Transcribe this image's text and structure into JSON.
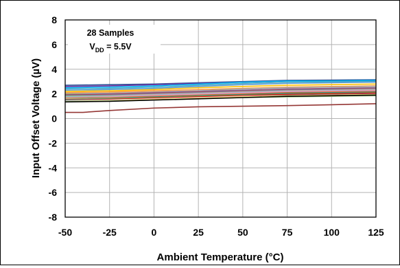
{
  "chart_data": {
    "type": "line",
    "title": "",
    "xlabel": "Ambient Temperature (°C)",
    "ylabel": "Input Offset Voltage (µV)",
    "xlim": [
      -50,
      125
    ],
    "ylim": [
      -8,
      8
    ],
    "x_ticks": [
      "-50",
      "-25",
      "0",
      "25",
      "50",
      "75",
      "100",
      "125"
    ],
    "y_ticks": [
      "8",
      "6",
      "4",
      "2",
      "0",
      "-2",
      "-4",
      "-6",
      "-8"
    ],
    "grid": true,
    "annotation": {
      "line1": "28 Samples",
      "line2_main": "V",
      "line2_sub": "DD",
      "line2_rest": " = 5.5V"
    },
    "x": [
      -50,
      -40,
      -25,
      0,
      25,
      50,
      75,
      100,
      125
    ],
    "series": [
      {
        "color": "#2F5597",
        "values": [
          2.7,
          2.72,
          2.75,
          2.8,
          2.9,
          3.0,
          3.1,
          3.12,
          3.15
        ]
      },
      {
        "color": "#7030A0",
        "values": [
          2.6,
          2.62,
          2.65,
          2.75,
          2.85,
          2.95,
          3.05,
          3.05,
          3.05
        ]
      },
      {
        "color": "#00B0F0",
        "values": [
          2.5,
          2.52,
          2.55,
          2.65,
          2.8,
          2.95,
          3.05,
          3.05,
          3.1
        ]
      },
      {
        "color": "#4BACC6",
        "values": [
          2.4,
          2.42,
          2.45,
          2.55,
          2.7,
          2.85,
          2.95,
          2.98,
          3.0
        ]
      },
      {
        "color": "#5B9BD5",
        "values": [
          2.3,
          2.32,
          2.35,
          2.45,
          2.6,
          2.75,
          2.85,
          2.9,
          2.95
        ]
      },
      {
        "color": "#FFC000",
        "values": [
          2.2,
          2.22,
          2.25,
          2.35,
          2.5,
          2.6,
          2.7,
          2.75,
          2.8
        ]
      },
      {
        "color": "#F79646",
        "values": [
          2.1,
          2.12,
          2.15,
          2.25,
          2.35,
          2.45,
          2.55,
          2.6,
          2.65
        ]
      },
      {
        "color": "#A5A5A5",
        "values": [
          2.0,
          2.02,
          2.05,
          2.15,
          2.25,
          2.4,
          2.5,
          2.55,
          2.6
        ]
      },
      {
        "color": "#9BBB59",
        "values": [
          2.0,
          2.0,
          2.0,
          2.05,
          2.1,
          2.15,
          2.2,
          2.25,
          2.3
        ]
      },
      {
        "color": "#8064A2",
        "values": [
          1.95,
          1.97,
          2.0,
          2.1,
          2.2,
          2.3,
          2.4,
          2.45,
          2.5
        ]
      },
      {
        "color": "#C0504D",
        "values": [
          1.9,
          1.92,
          1.95,
          2.05,
          2.15,
          2.25,
          2.35,
          2.4,
          2.45
        ]
      },
      {
        "color": "#4F81BD",
        "values": [
          1.85,
          1.87,
          1.9,
          2.0,
          2.1,
          2.2,
          2.3,
          2.35,
          2.4
        ]
      },
      {
        "color": "#F4B183",
        "values": [
          1.8,
          1.82,
          1.85,
          1.95,
          2.05,
          2.15,
          2.25,
          2.3,
          2.35
        ]
      },
      {
        "color": "#92D050",
        "values": [
          1.8,
          1.8,
          1.82,
          1.9,
          2.0,
          2.1,
          2.15,
          2.2,
          2.25
        ]
      },
      {
        "color": "#8EA9DB",
        "values": [
          1.75,
          1.77,
          1.8,
          1.9,
          2.0,
          2.1,
          2.2,
          2.25,
          2.3
        ]
      },
      {
        "color": "#FF99CC",
        "values": [
          1.7,
          1.72,
          1.75,
          1.85,
          1.95,
          2.05,
          2.15,
          2.2,
          2.25
        ]
      },
      {
        "color": "#B4C7E7",
        "values": [
          1.7,
          1.7,
          1.72,
          1.8,
          1.9,
          2.0,
          2.05,
          2.1,
          2.15
        ]
      },
      {
        "color": "#E46C0A",
        "values": [
          1.65,
          1.67,
          1.7,
          1.8,
          1.9,
          2.0,
          2.1,
          2.15,
          2.2
        ]
      },
      {
        "color": "#31859C",
        "values": [
          1.6,
          1.62,
          1.65,
          1.75,
          1.85,
          1.95,
          2.05,
          2.1,
          2.15
        ]
      },
      {
        "color": "#C9C9C9",
        "values": [
          1.6,
          1.6,
          1.62,
          1.7,
          1.8,
          1.85,
          1.9,
          1.95,
          2.0
        ]
      },
      {
        "color": "#76923C",
        "values": [
          1.55,
          1.57,
          1.6,
          1.7,
          1.8,
          1.9,
          2.0,
          2.05,
          2.1
        ]
      },
      {
        "color": "#FF0000",
        "values": [
          1.5,
          1.52,
          1.55,
          1.65,
          1.75,
          1.85,
          1.95,
          2.0,
          2.05
        ]
      },
      {
        "color": "#60497A",
        "values": [
          1.5,
          1.5,
          1.52,
          1.6,
          1.7,
          1.8,
          1.9,
          1.95,
          2.0
        ]
      },
      {
        "color": "#D9D9D9",
        "values": [
          1.45,
          1.47,
          1.5,
          1.6,
          1.7,
          1.8,
          1.85,
          1.9,
          1.95
        ]
      },
      {
        "color": "#FFD966",
        "values": [
          1.4,
          1.42,
          1.45,
          1.55,
          1.65,
          1.75,
          1.85,
          1.9,
          1.95
        ]
      },
      {
        "color": "#A9D08E",
        "values": [
          1.4,
          1.4,
          1.42,
          1.5,
          1.6,
          1.7,
          1.75,
          1.8,
          1.85
        ]
      },
      {
        "color": "#000000",
        "values": [
          1.35,
          1.37,
          1.4,
          1.5,
          1.6,
          1.7,
          1.8,
          1.85,
          1.9
        ]
      },
      {
        "color": "#943634",
        "values": [
          0.5,
          0.5,
          0.65,
          0.85,
          0.95,
          1.0,
          1.05,
          1.12,
          1.2
        ]
      }
    ]
  }
}
